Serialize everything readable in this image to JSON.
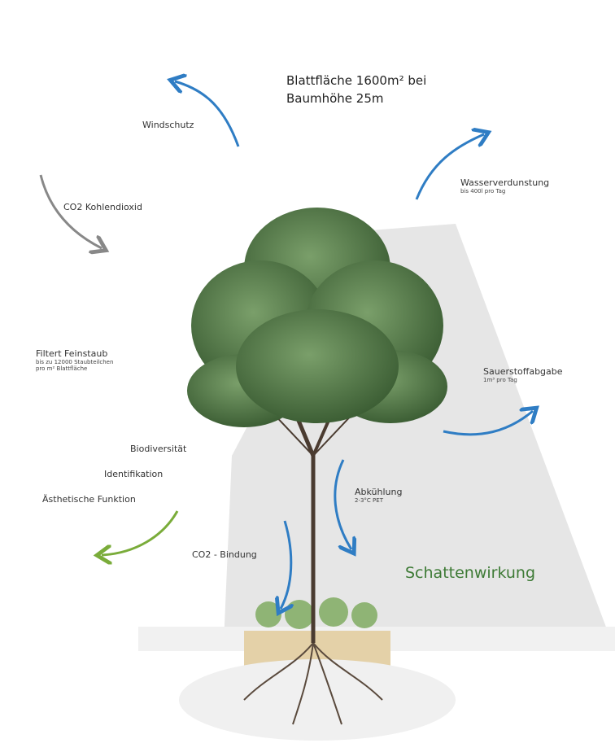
{
  "title": {
    "line1": "Blattfläche 1600m² bei",
    "line2": "Baumhöhe 25m"
  },
  "labels": {
    "windschutz": "Windschutz",
    "wasser": {
      "title": "Wasserverdunstung",
      "detail": "bis 400l pro Tag"
    },
    "co2": "CO2 Kohlendioxid",
    "feinstaub": {
      "title": "Filtert Feinstaub",
      "detail1": "bis zu 12000 Staubteilchen",
      "detail2": "pro m² Blattfläche"
    },
    "sauerstoff": {
      "title": "Sauerstoffabgabe",
      "detail": "1m³ pro Tag"
    },
    "biodiversitaet": "Biodiversität",
    "identifikation": "Identifikation",
    "aesthetik": "Ästhetische Funktion",
    "abkuehlung": {
      "title": "Abkühlung",
      "detail": "2-3°C PET"
    },
    "bindung": "CO2 - Bindung",
    "schatten": "Schattenwirkung"
  }
}
